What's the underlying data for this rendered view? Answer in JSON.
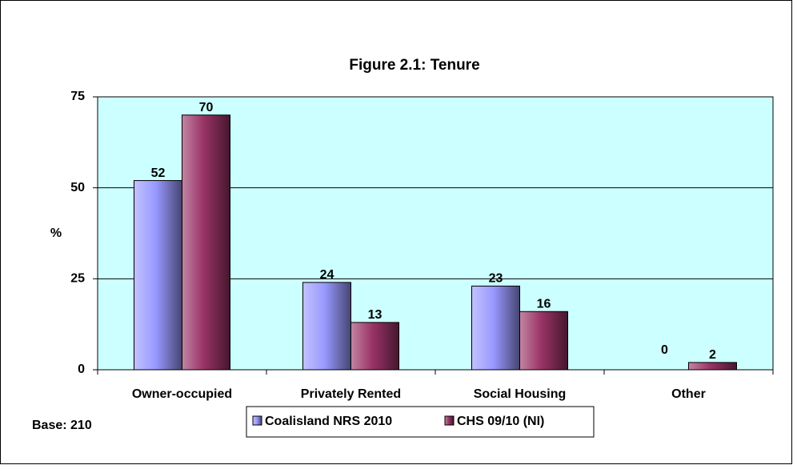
{
  "chart_data": {
    "type": "bar",
    "title": "Figure 2.1: Tenure",
    "y_label": "%",
    "note": "Base:  210",
    "categories": [
      "Owner-occupied",
      "Privately Rented",
      "Social Housing",
      "Other"
    ],
    "series": [
      {
        "name": "Coalisland NRS 2010",
        "color": "#9999ff",
        "values": [
          52,
          24,
          23,
          0
        ]
      },
      {
        "name": "CHS 09/10 (NI)",
        "color": "#993366",
        "values": [
          70,
          13,
          16,
          2
        ]
      }
    ],
    "ylim": [
      0,
      75
    ],
    "yticks": [
      0,
      25,
      50,
      75
    ],
    "grid": true,
    "legend": "bottom"
  }
}
